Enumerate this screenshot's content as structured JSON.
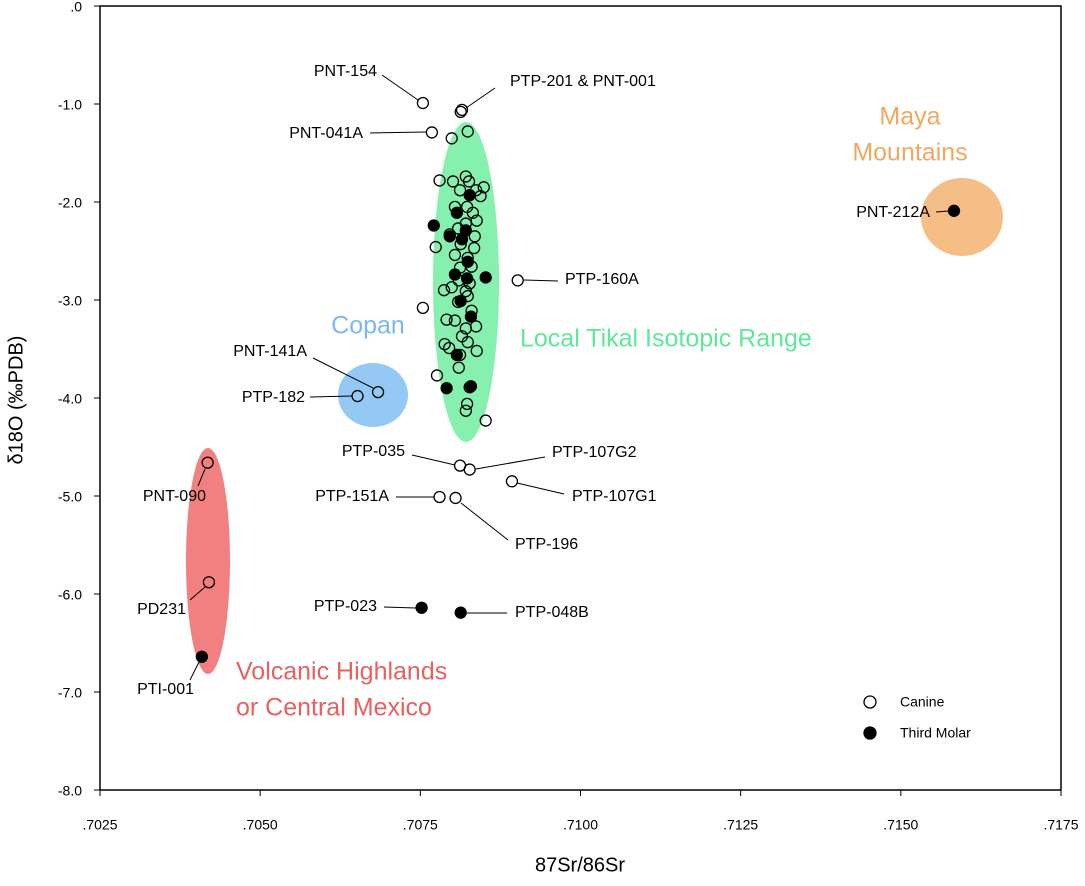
{
  "chart_data": {
    "type": "scatter",
    "xlabel": "87Sr/86Sr",
    "ylabel": "δ18O (‰PDB)",
    "xlim": [
      0.7025,
      0.7175
    ],
    "ylim": [
      -8.0,
      0.0
    ],
    "xticks": [
      {
        "value": 0.7025,
        "label": ".7025"
      },
      {
        "value": 0.705,
        "label": ".7050"
      },
      {
        "value": 0.7075,
        "label": ".7075"
      },
      {
        "value": 0.71,
        "label": ".7100"
      },
      {
        "value": 0.7125,
        "label": ".7125"
      },
      {
        "value": 0.715,
        "label": ".7150"
      },
      {
        "value": 0.7175,
        "label": ".7175"
      }
    ],
    "yticks": [
      {
        "value": 0,
        "label": ".0"
      },
      {
        "value": -1,
        "label": "-1.0"
      },
      {
        "value": -2,
        "label": "-2.0"
      },
      {
        "value": -3,
        "label": "-3.0"
      },
      {
        "value": -4,
        "label": "-4.0"
      },
      {
        "value": -5,
        "label": "-5.0"
      },
      {
        "value": -6,
        "label": "-6.0"
      },
      {
        "value": -7,
        "label": "-7.0"
      },
      {
        "value": -8,
        "label": "-8.0"
      }
    ],
    "regions": [
      {
        "lines": [
          "Maya",
          "Mountains"
        ],
        "color": "#f5be86",
        "text_color": "#f0a860"
      },
      {
        "lines": [
          "Copan"
        ],
        "color": "#94c8f5",
        "text_color": "#7db8f0"
      },
      {
        "lines": [
          "Local Tikal Isotopic Range"
        ],
        "color": "#86f0ae",
        "text_color": "#5ee89a"
      },
      {
        "lines": [
          "Volcanic Highlands",
          "or Central Mexico"
        ],
        "color": "#f28080",
        "text_color": "#e86060"
      }
    ],
    "series": [
      {
        "name": "Canine",
        "color": "#000000",
        "filled": false,
        "x": [
          0.70754,
          0.70813,
          0.70815,
          0.70768,
          0.70902,
          0.70684,
          0.70652,
          0.70812,
          0.70827,
          0.70893,
          0.7078,
          0.70805,
          0.70418,
          0.7042,
          0.70824,
          0.70799,
          0.7078,
          0.70801,
          0.70821,
          0.70826,
          0.70837,
          0.70849,
          0.70812,
          0.70844,
          0.70804,
          0.70823,
          0.70832,
          0.70838,
          0.70821,
          0.70809,
          0.70835,
          0.70796,
          0.70774,
          0.70813,
          0.70834,
          0.70804,
          0.70824,
          0.7083,
          0.7081,
          0.70827,
          0.70799,
          0.70821,
          0.70824,
          0.70754,
          0.70809,
          0.7083,
          0.70791,
          0.70804,
          0.70837,
          0.70821,
          0.70815,
          0.70788,
          0.70824,
          0.70795,
          0.70812,
          0.70838,
          0.7081,
          0.70776,
          0.70827,
          0.70823,
          0.70821,
          0.70852,
          0.70812,
          0.70787
        ],
        "values": [
          -0.99,
          -1.08,
          -1.06,
          -1.29,
          -2.8,
          -3.94,
          -3.98,
          -4.69,
          -4.73,
          -4.85,
          -5.01,
          -5.02,
          -4.66,
          -5.88,
          -1.28,
          -1.35,
          -1.78,
          -1.79,
          -1.74,
          -1.79,
          -1.88,
          -1.85,
          -1.88,
          -1.94,
          -2.05,
          -2.05,
          -2.11,
          -2.19,
          -2.22,
          -2.27,
          -2.35,
          -2.33,
          -2.46,
          -2.43,
          -2.47,
          -2.54,
          -2.57,
          -2.66,
          -2.8,
          -2.83,
          -2.87,
          -2.91,
          -2.96,
          -3.08,
          -3.02,
          -3.11,
          -3.2,
          -3.21,
          -3.27,
          -3.29,
          -3.37,
          -3.45,
          -3.43,
          -3.49,
          -3.56,
          -3.52,
          -3.69,
          -3.77,
          -3.89,
          -4.06,
          -4.13,
          -4.23,
          -2.67,
          -2.9
        ],
        "point_labels": [
          "PNT-154",
          "PTP-201 & PNT-001",
          null,
          "PNT-041A",
          "PTP-160A",
          "PNT-141A",
          "PTP-182",
          "PTP-035",
          "PTP-107G2",
          "PTP-107G1",
          "PTP-151A",
          "PTP-196",
          "PNT-090",
          "PD231",
          null,
          null,
          null,
          null,
          null,
          null,
          null,
          null,
          null,
          null,
          null,
          null,
          null,
          null,
          null,
          null,
          null,
          null,
          null,
          null,
          null,
          null,
          null,
          null,
          null,
          null,
          null,
          null,
          null,
          null,
          null,
          null,
          null,
          null,
          null,
          null,
          null,
          null,
          null,
          null,
          null,
          null,
          null,
          null,
          null,
          null,
          null,
          null,
          null,
          null
        ]
      },
      {
        "name": "Third Molar",
        "color": "#000000",
        "filled": true,
        "x": [
          0.71583,
          0.70409,
          0.70752,
          0.70813,
          0.70771,
          0.70827,
          0.70807,
          0.70821,
          0.70796,
          0.70815,
          0.70804,
          0.70852,
          0.70823,
          0.70813,
          0.70829,
          0.70807,
          0.70791,
          0.70829,
          0.70824
        ],
        "values": [
          -2.09,
          -6.64,
          -6.14,
          -6.19,
          -2.24,
          -1.93,
          -2.11,
          -2.29,
          -2.35,
          -2.38,
          -2.74,
          -2.77,
          -2.78,
          -3.01,
          -3.17,
          -3.56,
          -3.9,
          -3.88,
          -2.61
        ],
        "point_labels": [
          "PNT-212A",
          "PTI-001",
          "PTP-023",
          "PTP-048B",
          null,
          null,
          null,
          null,
          null,
          null,
          null,
          null,
          null,
          null,
          null,
          null,
          null,
          null,
          null
        ]
      }
    ]
  }
}
